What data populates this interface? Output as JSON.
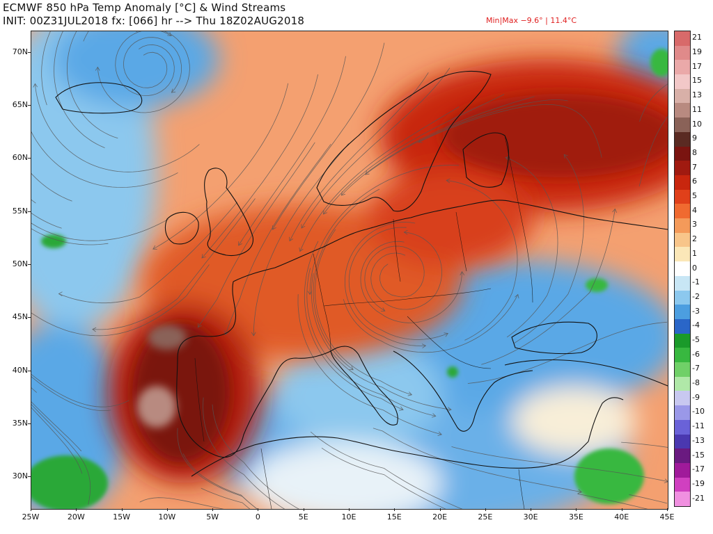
{
  "title": {
    "line1": "ECMWF 850 hPa Temp Anomaly [°C] & Wind Streams",
    "line2": "INIT: 00Z31JUL2018 fx: [066] hr --> Thu 18Z02AUG2018"
  },
  "minmax": "Min|Max  −9.6°  |  11.4°C",
  "map": {
    "lon_range": [
      -25,
      45
    ],
    "lat_range": [
      27,
      72
    ],
    "x_ticks": [
      "25W",
      "20W",
      "15W",
      "10W",
      "5W",
      "0",
      "5E",
      "10E",
      "15E",
      "20E",
      "25E",
      "30E",
      "35E",
      "40E",
      "45E"
    ],
    "y_ticks": [
      "70N",
      "65N",
      "60N",
      "55N",
      "50N",
      "45N",
      "40N",
      "35N",
      "30N"
    ],
    "y_tick_values": [
      70,
      65,
      60,
      55,
      50,
      45,
      40,
      35,
      30
    ]
  },
  "colorbar": {
    "labels": [
      "21",
      "19",
      "17",
      "15",
      "13",
      "11",
      "10",
      "9",
      "8",
      "7",
      "6",
      "5",
      "4",
      "3",
      "2",
      "1",
      "0",
      "-1",
      "-2",
      "-3",
      "-4",
      "-5",
      "-6",
      "-7",
      "-8",
      "-9",
      "-10",
      "-11",
      "-13",
      "-15",
      "-17",
      "-19",
      "-21"
    ],
    "colors": [
      "#d86a6a",
      "#e08a8a",
      "#eaa9a9",
      "#f2c8c8",
      "#d8b0a8",
      "#b88a80",
      "#8a6258",
      "#5a2a22",
      "#7a1410",
      "#a01a10",
      "#c8260e",
      "#e0401a",
      "#f06a30",
      "#f49a5a",
      "#f8c58a",
      "#fbe7b8",
      "#ffffff",
      "#c8e6f5",
      "#8cc8ee",
      "#4c9ee0",
      "#2a66c8",
      "#1a9a2a",
      "#38b840",
      "#70d068",
      "#b0e8a8",
      "#c8c8f0",
      "#9a98e8",
      "#6a62d8",
      "#4a38b0",
      "#6a1a80",
      "#a01a9a",
      "#d040c0",
      "#f090e0"
    ]
  },
  "colors": {
    "warm_core": "#5a2a22",
    "warm_strong": "#b81e10",
    "warm_mid": "#e85a28",
    "warm_light": "#f4a070",
    "cool_light": "#c8e6f5",
    "cool_mid": "#5aa8e6",
    "cool_strong": "#2a66c8",
    "green": "#2aa838",
    "coast": "#111111",
    "streamline": "#555555"
  }
}
